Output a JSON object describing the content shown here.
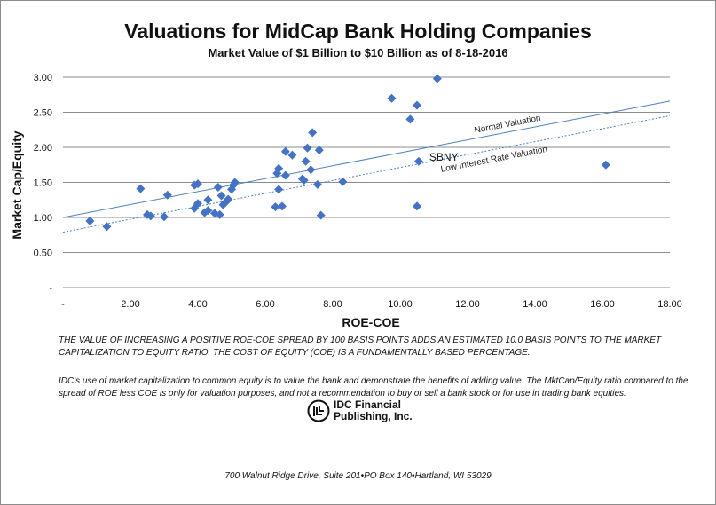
{
  "chart_data": {
    "type": "scatter",
    "title": "Valuations for MidCap Bank Holding Companies",
    "subtitle": "Market Value of $1 Billion to $10 Billion as of 8-18-2016",
    "xlabel": "ROE-COE",
    "ylabel": "Market Cap/Equity",
    "xlim": [
      0,
      18
    ],
    "ylim": [
      0,
      3
    ],
    "x_ticks": [
      "-",
      "2.00",
      "4.00",
      "6.00",
      "8.00",
      "10.00",
      "12.00",
      "14.00",
      "16.00",
      "18.00"
    ],
    "y_ticks": [
      "-",
      "0.50",
      "1.00",
      "1.50",
      "2.00",
      "2.50",
      "3.00"
    ],
    "grid": "horizontal",
    "marker_color": "#4472C4",
    "points": [
      {
        "x": 0.8,
        "y": 0.95
      },
      {
        "x": 1.3,
        "y": 0.87
      },
      {
        "x": 2.3,
        "y": 1.41
      },
      {
        "x": 2.5,
        "y": 1.04
      },
      {
        "x": 2.6,
        "y": 1.02
      },
      {
        "x": 3.0,
        "y": 1.01
      },
      {
        "x": 3.1,
        "y": 1.32
      },
      {
        "x": 3.9,
        "y": 1.46
      },
      {
        "x": 4.0,
        "y": 1.48
      },
      {
        "x": 3.9,
        "y": 1.13
      },
      {
        "x": 4.0,
        "y": 1.2
      },
      {
        "x": 4.2,
        "y": 1.07
      },
      {
        "x": 4.3,
        "y": 1.1
      },
      {
        "x": 4.3,
        "y": 1.25
      },
      {
        "x": 4.5,
        "y": 1.06
      },
      {
        "x": 4.6,
        "y": 1.43
      },
      {
        "x": 4.65,
        "y": 1.04
      },
      {
        "x": 4.7,
        "y": 1.31
      },
      {
        "x": 4.75,
        "y": 1.18
      },
      {
        "x": 4.85,
        "y": 1.23
      },
      {
        "x": 4.9,
        "y": 1.26
      },
      {
        "x": 5.0,
        "y": 1.4
      },
      {
        "x": 5.05,
        "y": 1.46
      },
      {
        "x": 5.1,
        "y": 1.5
      },
      {
        "x": 6.3,
        "y": 1.15
      },
      {
        "x": 6.35,
        "y": 1.63
      },
      {
        "x": 6.4,
        "y": 1.7
      },
      {
        "x": 6.4,
        "y": 1.4
      },
      {
        "x": 6.5,
        "y": 1.16
      },
      {
        "x": 6.6,
        "y": 1.6
      },
      {
        "x": 6.6,
        "y": 1.94
      },
      {
        "x": 6.8,
        "y": 1.89
      },
      {
        "x": 7.1,
        "y": 1.55
      },
      {
        "x": 7.15,
        "y": 1.53
      },
      {
        "x": 7.2,
        "y": 1.8
      },
      {
        "x": 7.25,
        "y": 1.99
      },
      {
        "x": 7.35,
        "y": 1.68
      },
      {
        "x": 7.4,
        "y": 2.21
      },
      {
        "x": 7.55,
        "y": 1.47
      },
      {
        "x": 7.6,
        "y": 1.96
      },
      {
        "x": 7.65,
        "y": 1.03
      },
      {
        "x": 8.3,
        "y": 1.51
      },
      {
        "x": 9.75,
        "y": 2.7
      },
      {
        "x": 10.3,
        "y": 2.4
      },
      {
        "x": 10.5,
        "y": 2.6
      },
      {
        "x": 10.5,
        "y": 1.16
      },
      {
        "x": 10.55,
        "y": 1.8
      },
      {
        "x": 11.1,
        "y": 2.98
      },
      {
        "x": 16.1,
        "y": 1.75
      }
    ],
    "point_labels": [
      {
        "text": "SBNY",
        "x": 10.55,
        "y": 1.8
      }
    ],
    "trend_lines": [
      {
        "name": "Normal Valuation",
        "x": [
          0,
          18
        ],
        "y": [
          1.0,
          2.66
        ],
        "style": "solid"
      },
      {
        "name": "Low Interest Rate Valuation",
        "x": [
          0,
          18
        ],
        "y": [
          0.79,
          2.45
        ],
        "style": "dotted"
      }
    ]
  },
  "notes": {
    "note1": "THE VALUE OF INCREASING A POSITIVE ROE-COE SPREAD BY 100 BASIS POINTS ADDS AN ESTIMATED 10.0 BASIS POINTS TO THE MARKET CAPITALIZATION TO EQUITY RATIO.  THE COST OF EQUITY (COE) IS A FUNDAMENTALLY BASED PERCENTAGE.",
    "note2": "IDC's use of market capitalization to common equity is to value the bank and demonstrate the benefits of adding value.  The MktCap/Equity ratio compared to the spread of ROE less COE is only for valuation purposes, and not a recommendation to buy or sell a bank stock or for use in trading bank equities."
  },
  "logo": {
    "line1": "IDC Financial",
    "line2": "Publishing, Inc."
  },
  "footer": {
    "address": "700 Walnut Ridge Drive, Suite 201•PO Box 140•Hartland, WI 53029"
  }
}
